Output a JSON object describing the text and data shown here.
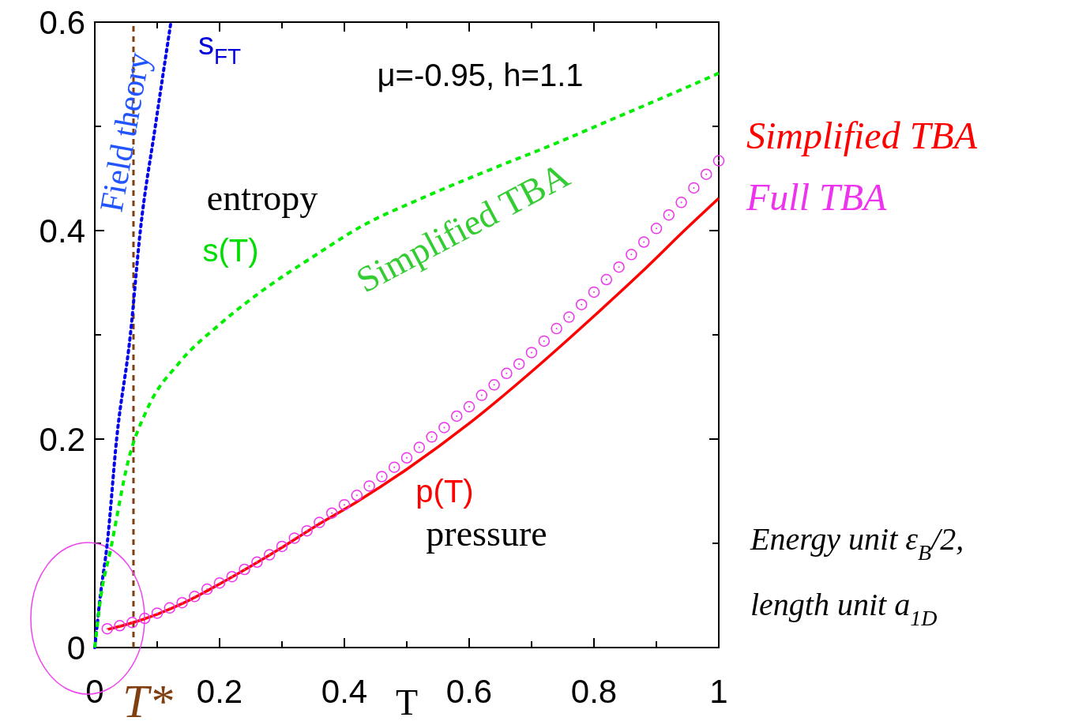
{
  "chart_data": {
    "type": "line",
    "xlabel": "T",
    "xlim": [
      0,
      1
    ],
    "ylim": [
      0,
      0.6
    ],
    "xticks": [
      0,
      {
        "value": 0.1,
        "label": null
      },
      0.2,
      {
        "value": 0.3,
        "label": null
      },
      0.4,
      {
        "value": 0.5,
        "label": null
      },
      0.6,
      {
        "value": 0.7,
        "label": null
      },
      0.8,
      {
        "value": 0.9,
        "label": null
      },
      1
    ],
    "yticks": [
      0,
      {
        "value": 0.1,
        "label": null
      },
      0.2,
      {
        "value": 0.3,
        "label": null
      },
      0.4,
      {
        "value": 0.5,
        "label": null
      },
      0.6
    ],
    "grid": false,
    "legend": "right",
    "series": [
      {
        "color": "#0000ee",
        "line_style": "dotted",
        "x": [
          0,
          0.009,
          0.02,
          0.035,
          0.057,
          0.073,
          0.097,
          0.122
        ],
        "values": [
          0,
          0.05,
          0.1,
          0.2,
          0.3,
          0.4,
          0.5,
          0.6
        ]
      },
      {
        "color": "#00ee00",
        "line_style": "dashed",
        "x": [
          0,
          0.01,
          0.025,
          0.054,
          0.085,
          0.135,
          0.2,
          0.27,
          0.35,
          0.43,
          0.52,
          0.64,
          0.74,
          0.83,
          0.92,
          1.0
        ],
        "values": [
          0,
          0.05,
          0.093,
          0.18,
          0.23,
          0.273,
          0.31,
          0.343,
          0.375,
          0.405,
          0.43,
          0.46,
          0.484,
          0.507,
          0.53,
          0.551
        ]
      },
      {
        "name": "Simplified TBA",
        "color": "#ff0000",
        "line_style": "solid",
        "x": [
          0.021,
          0.05,
          0.1,
          0.15,
          0.2,
          0.25,
          0.3,
          0.35,
          0.418,
          0.5,
          0.6,
          0.714,
          0.8,
          0.876,
          0.95,
          1.0
        ],
        "values": [
          0.0175,
          0.022,
          0.032,
          0.045,
          0.061,
          0.078,
          0.096,
          0.115,
          0.139,
          0.171,
          0.215,
          0.272,
          0.318,
          0.36,
          0.403,
          0.431
        ]
      },
      {
        "type": "scatter",
        "name": "Full TBA",
        "color": "#ee33ee",
        "marker": "circle",
        "x": [
          0.02,
          0.04,
          0.06,
          0.08,
          0.1,
          0.12,
          0.14,
          0.16,
          0.18,
          0.2,
          0.22,
          0.24,
          0.26,
          0.28,
          0.3,
          0.32,
          0.34,
          0.36,
          0.38,
          0.4,
          0.42,
          0.44,
          0.46,
          0.48,
          0.5,
          0.52,
          0.54,
          0.56,
          0.58,
          0.6,
          0.62,
          0.64,
          0.66,
          0.68,
          0.7,
          0.72,
          0.74,
          0.76,
          0.78,
          0.8,
          0.82,
          0.84,
          0.86,
          0.88,
          0.9,
          0.92,
          0.94,
          0.96,
          0.98,
          1.0
        ],
        "values": [
          0.018,
          0.021,
          0.024,
          0.028,
          0.033,
          0.038,
          0.043,
          0.049,
          0.056,
          0.062,
          0.068,
          0.075,
          0.082,
          0.089,
          0.097,
          0.105,
          0.112,
          0.12,
          0.129,
          0.137,
          0.146,
          0.155,
          0.164,
          0.173,
          0.182,
          0.192,
          0.202,
          0.211,
          0.222,
          0.231,
          0.242,
          0.252,
          0.263,
          0.272,
          0.283,
          0.294,
          0.306,
          0.317,
          0.329,
          0.341,
          0.353,
          0.365,
          0.377,
          0.389,
          0.402,
          0.415,
          0.427,
          0.441,
          0.454,
          0.467
        ]
      }
    ],
    "ref_lines": [
      {
        "axis": "x",
        "value": 0.062,
        "label": "T*",
        "color": "#7f3f10",
        "line_style": "dashed"
      }
    ],
    "annotations": [
      "Field theory",
      "s$_{FT}$",
      "μ=-0.95, h=1.1",
      "entropy",
      "s(T)",
      "Simplified TBA",
      "p(T)",
      "pressure",
      "Energy unit ε$_{B}$/2,",
      "length unit a$_{1D}$"
    ]
  }
}
